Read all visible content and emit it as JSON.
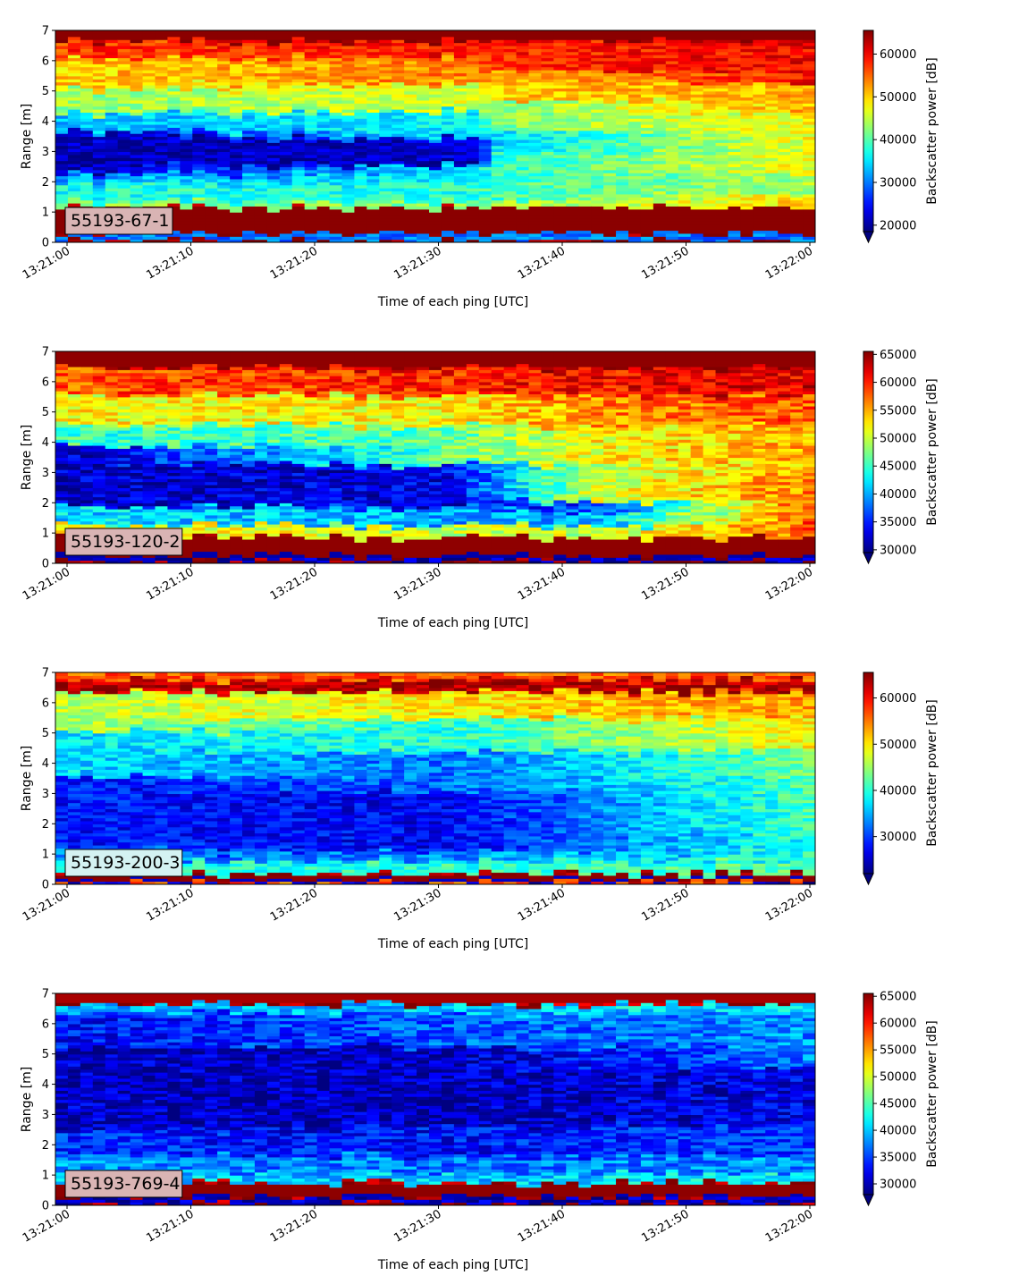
{
  "chart_data": [
    {
      "type": "heatmap",
      "label": "55193-67-1",
      "label_bg": "#d9b4b4",
      "xlabel": "Time of each ping [UTC]",
      "ylabel": "Range [m]",
      "xticks": [
        "13:21:00",
        "13:21:10",
        "13:21:20",
        "13:21:30",
        "13:21:40",
        "13:21:50",
        "13:22:00"
      ],
      "xlim": [
        0,
        61
      ],
      "ylim": [
        0,
        7
      ],
      "yticks": [
        0,
        1,
        2,
        3,
        4,
        5,
        6,
        7
      ],
      "colorbar": {
        "label": "Backscatter power [dB]",
        "vmin": 18500,
        "vmax": 65535,
        "ticks": [
          20000,
          30000,
          40000,
          50000,
          60000
        ],
        "extend": "min",
        "colormap": "jet"
      },
      "profile": [
        {
          "t": 0,
          "bands": [
            [
              0.0,
              0.25,
              30000
            ],
            [
              0.25,
              1.1,
              65000
            ],
            [
              1.1,
              1.3,
              42000
            ],
            [
              1.3,
              1.9,
              37000
            ],
            [
              1.9,
              2.2,
              32000
            ],
            [
              2.2,
              3.6,
              21000
            ],
            [
              3.6,
              4.2,
              33000
            ],
            [
              4.2,
              5.0,
              43000
            ],
            [
              5.0,
              6.0,
              50000
            ],
            [
              6.0,
              6.6,
              57000
            ],
            [
              6.6,
              7.0,
              65000
            ]
          ]
        },
        {
          "t": 33,
          "bands": [
            [
              0.0,
              0.25,
              30000
            ],
            [
              0.25,
              1.1,
              65000
            ],
            [
              1.1,
              1.3,
              42000
            ],
            [
              1.3,
              2.0,
              38000
            ],
            [
              2.0,
              2.5,
              36000
            ],
            [
              2.5,
              3.4,
              22000
            ],
            [
              3.4,
              4.3,
              36000
            ],
            [
              4.3,
              5.2,
              46000
            ],
            [
              5.2,
              6.1,
              54000
            ],
            [
              6.1,
              6.6,
              59000
            ],
            [
              6.6,
              7.0,
              65000
            ]
          ]
        },
        {
          "t": 34,
          "bands": [
            [
              0.0,
              0.25,
              30000
            ],
            [
              0.25,
              1.1,
              65000
            ],
            [
              1.1,
              1.3,
              43000
            ],
            [
              1.3,
              2.1,
              39000
            ],
            [
              2.1,
              2.9,
              38000
            ],
            [
              2.9,
              3.6,
              34000
            ],
            [
              3.6,
              4.6,
              42000
            ],
            [
              4.6,
              5.6,
              50000
            ],
            [
              5.6,
              6.6,
              58000
            ],
            [
              6.6,
              7.0,
              65000
            ]
          ]
        },
        {
          "t": 61,
          "bands": [
            [
              0.0,
              0.25,
              30000
            ],
            [
              0.25,
              1.1,
              65000
            ],
            [
              1.1,
              1.5,
              50000
            ],
            [
              1.5,
              2.2,
              44000
            ],
            [
              2.2,
              3.2,
              48000
            ],
            [
              3.2,
              4.2,
              48000
            ],
            [
              4.2,
              5.2,
              52000
            ],
            [
              5.2,
              6.2,
              60000
            ],
            [
              6.2,
              6.6,
              60000
            ],
            [
              6.6,
              7.0,
              65000
            ]
          ]
        }
      ]
    },
    {
      "type": "heatmap",
      "label": "55193-120-2",
      "label_bg": "#d9b4b4",
      "xlabel": "Time of each ping [UTC]",
      "ylabel": "Range [m]",
      "xticks": [
        "13:21:00",
        "13:21:10",
        "13:21:20",
        "13:21:30",
        "13:21:40",
        "13:21:50",
        "13:22:00"
      ],
      "xlim": [
        0,
        61
      ],
      "ylim": [
        0,
        7
      ],
      "yticks": [
        0,
        1,
        2,
        3,
        4,
        5,
        6,
        7
      ],
      "colorbar": {
        "label": "Backscatter power [dB]",
        "vmin": 29500,
        "vmax": 65535,
        "ticks": [
          30000,
          35000,
          40000,
          45000,
          50000,
          55000,
          60000,
          65000
        ],
        "extend": "min",
        "colormap": "jet"
      },
      "profile": [
        {
          "t": 0,
          "bands": [
            [
              0.0,
              0.2,
              31000
            ],
            [
              0.2,
              0.8,
              65000
            ],
            [
              0.8,
              1.2,
              52000
            ],
            [
              1.2,
              1.8,
              42000
            ],
            [
              1.8,
              3.8,
              32000
            ],
            [
              3.8,
              4.5,
              45000
            ],
            [
              4.5,
              5.5,
              52000
            ],
            [
              5.5,
              6.4,
              58000
            ],
            [
              6.4,
              7.0,
              65000
            ]
          ]
        },
        {
          "t": 30,
          "bands": [
            [
              0.0,
              0.2,
              31000
            ],
            [
              0.2,
              0.8,
              65000
            ],
            [
              0.8,
              1.2,
              50000
            ],
            [
              1.2,
              1.8,
              40000
            ],
            [
              1.8,
              3.2,
              33000
            ],
            [
              3.2,
              4.5,
              46000
            ],
            [
              4.5,
              5.5,
              52000
            ],
            [
              5.5,
              6.4,
              60000
            ],
            [
              6.4,
              7.0,
              65000
            ]
          ]
        },
        {
          "t": 42,
          "bands": [
            [
              0.0,
              0.2,
              31000
            ],
            [
              0.2,
              0.8,
              65000
            ],
            [
              0.8,
              1.2,
              50000
            ],
            [
              1.2,
              1.6,
              40000
            ],
            [
              1.6,
              2.0,
              36000
            ],
            [
              2.0,
              3.3,
              50000
            ],
            [
              3.3,
              4.5,
              52000
            ],
            [
              4.5,
              5.5,
              56000
            ],
            [
              5.5,
              6.4,
              61000
            ],
            [
              6.4,
              7.0,
              65000
            ]
          ]
        },
        {
          "t": 61,
          "bands": [
            [
              0.0,
              0.2,
              31000
            ],
            [
              0.2,
              0.8,
              65000
            ],
            [
              0.8,
              1.2,
              58000
            ],
            [
              1.2,
              2.0,
              60000
            ],
            [
              2.0,
              3.0,
              57000
            ],
            [
              3.0,
              4.5,
              55000
            ],
            [
              4.5,
              5.5,
              58000
            ],
            [
              5.5,
              6.4,
              62000
            ],
            [
              6.4,
              7.0,
              65000
            ]
          ]
        }
      ]
    },
    {
      "type": "heatmap",
      "label": "55193-200-3",
      "label_bg": "#d4f2f2",
      "xlabel": "Time of each ping [UTC]",
      "ylabel": "Range [m]",
      "xticks": [
        "13:21:00",
        "13:21:10",
        "13:21:20",
        "13:21:30",
        "13:21:40",
        "13:21:50",
        "13:22:00"
      ],
      "xlim": [
        0,
        61
      ],
      "ylim": [
        0,
        7
      ],
      "yticks": [
        0,
        1,
        2,
        3,
        4,
        5,
        6,
        7
      ],
      "colorbar": {
        "label": "Backscatter power [dB]",
        "vmin": 22000,
        "vmax": 65535,
        "ticks": [
          30000,
          40000,
          50000,
          60000
        ],
        "extend": "min",
        "colormap": "jet"
      },
      "profile": [
        {
          "t": 0,
          "bands": [
            [
              0.0,
              0.1,
              25000
            ],
            [
              0.1,
              0.3,
              65000
            ],
            [
              0.3,
              0.7,
              40000
            ],
            [
              0.7,
              1.2,
              33000
            ],
            [
              1.2,
              3.5,
              28000
            ],
            [
              3.5,
              5.0,
              37000
            ],
            [
              5.0,
              6.3,
              46000
            ],
            [
              6.3,
              6.7,
              63000
            ],
            [
              6.7,
              7.0,
              56000
            ]
          ]
        },
        {
          "t": 30,
          "bands": [
            [
              0.0,
              0.1,
              25000
            ],
            [
              0.1,
              0.3,
              65000
            ],
            [
              0.3,
              0.7,
              40000
            ],
            [
              0.7,
              1.0,
              33000
            ],
            [
              1.0,
              3.0,
              27000
            ],
            [
              3.0,
              4.3,
              32000
            ],
            [
              4.3,
              5.4,
              40000
            ],
            [
              5.4,
              6.3,
              50000
            ],
            [
              6.3,
              6.7,
              64000
            ],
            [
              6.7,
              7.0,
              56000
            ]
          ]
        },
        {
          "t": 61,
          "bands": [
            [
              0.0,
              0.1,
              25000
            ],
            [
              0.1,
              0.3,
              65000
            ],
            [
              0.3,
              0.7,
              42000
            ],
            [
              0.7,
              1.5,
              40000
            ],
            [
              1.5,
              3.5,
              42000
            ],
            [
              3.5,
              4.5,
              44000
            ],
            [
              4.5,
              5.5,
              50000
            ],
            [
              5.5,
              6.3,
              54000
            ],
            [
              6.3,
              6.7,
              64000
            ],
            [
              6.7,
              7.0,
              56000
            ]
          ]
        }
      ]
    },
    {
      "type": "heatmap",
      "label": "55193-769-4",
      "label_bg": "#d9b4b4",
      "xlabel": "Time of each ping [UTC]",
      "ylabel": "Range [m]",
      "xticks": [
        "13:21:00",
        "13:21:10",
        "13:21:20",
        "13:21:30",
        "13:21:40",
        "13:21:50",
        "13:22:00"
      ],
      "xlim": [
        0,
        61
      ],
      "ylim": [
        0,
        7
      ],
      "yticks": [
        0,
        1,
        2,
        3,
        4,
        5,
        6,
        7
      ],
      "colorbar": {
        "label": "Backscatter power [dB]",
        "vmin": 28000,
        "vmax": 65535,
        "ticks": [
          30000,
          35000,
          40000,
          45000,
          50000,
          55000,
          60000,
          65000
        ],
        "extend": "min",
        "colormap": "jet"
      },
      "profile": [
        {
          "t": 0,
          "bands": [
            [
              0.0,
              0.25,
              30000
            ],
            [
              0.25,
              0.7,
              65000
            ],
            [
              0.7,
              1.0,
              40000
            ],
            [
              1.0,
              1.6,
              38000
            ],
            [
              1.6,
              2.4,
              34000
            ],
            [
              2.4,
              5.2,
              30500
            ],
            [
              5.2,
              6.3,
              33000
            ],
            [
              6.3,
              6.6,
              38000
            ],
            [
              6.6,
              7.0,
              64000
            ]
          ]
        },
        {
          "t": 30,
          "bands": [
            [
              0.0,
              0.25,
              30000
            ],
            [
              0.25,
              0.7,
              65000
            ],
            [
              0.7,
              1.0,
              40000
            ],
            [
              1.0,
              1.6,
              37000
            ],
            [
              1.6,
              2.6,
              33000
            ],
            [
              2.6,
              5.2,
              30000
            ],
            [
              5.2,
              6.3,
              36000
            ],
            [
              6.3,
              6.6,
              40000
            ],
            [
              6.6,
              7.0,
              64000
            ]
          ]
        },
        {
          "t": 61,
          "bands": [
            [
              0.0,
              0.25,
              30000
            ],
            [
              0.25,
              0.7,
              65000
            ],
            [
              0.7,
              1.0,
              42000
            ],
            [
              1.0,
              1.6,
              38000
            ],
            [
              1.6,
              2.6,
              35000
            ],
            [
              2.6,
              4.5,
              32000
            ],
            [
              4.5,
              6.3,
              38000
            ],
            [
              6.3,
              6.6,
              42000
            ],
            [
              6.6,
              7.0,
              64000
            ]
          ]
        }
      ]
    }
  ]
}
